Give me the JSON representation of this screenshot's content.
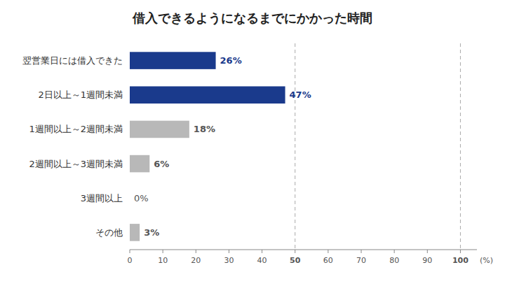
{
  "chart_data": {
    "type": "bar",
    "orientation": "horizontal",
    "title": "借入できるようになるまでにかかった時間",
    "categories": [
      "翌営業日には借入できた",
      "2日以上～1週間未満",
      "1週間以上～2週間未満",
      "2週間以上～3週間未満",
      "3週間以上",
      "その他"
    ],
    "values": [
      26,
      47,
      18,
      6,
      0,
      3
    ],
    "value_labels": [
      "26%",
      "47%",
      "18%",
      "6%",
      "0%",
      "3%"
    ],
    "colors": [
      "#1a3a8c",
      "#1a3a8c",
      "#b8b8b8",
      "#b8b8b8",
      "#b8b8b8",
      "#b8b8b8"
    ],
    "xlabel": "(%)",
    "xlim": [
      0,
      105
    ],
    "xticks": [
      0,
      10,
      20,
      30,
      40,
      50,
      60,
      70,
      80,
      90,
      100
    ],
    "reference_lines": [
      50,
      100
    ],
    "data_labels": true,
    "grid": false
  }
}
